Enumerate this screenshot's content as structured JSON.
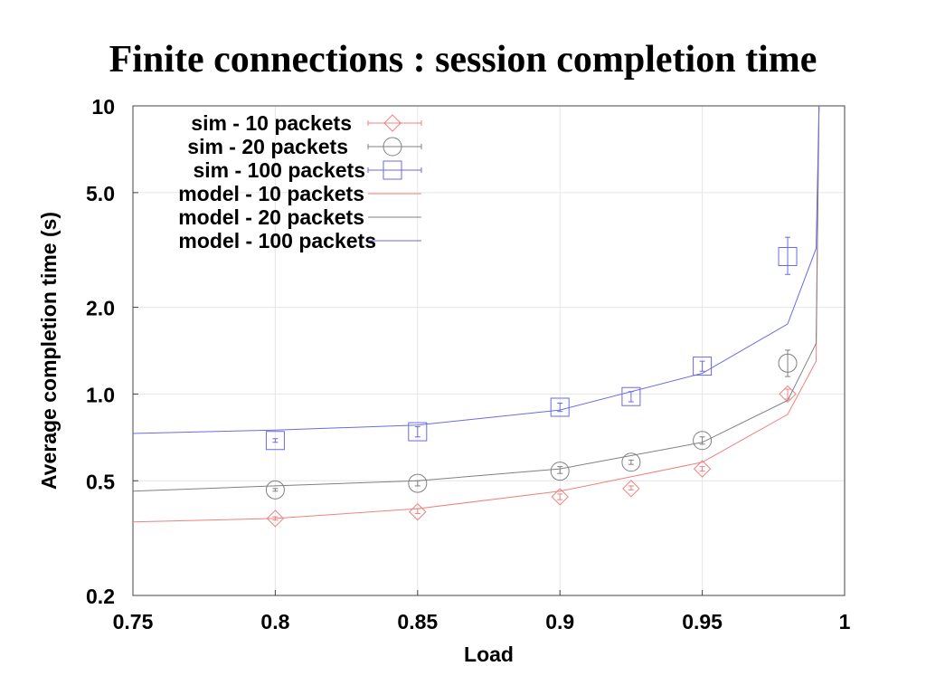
{
  "chart_data": {
    "type": "line",
    "title": "Finite connections : session completion time",
    "xlabel": "Load",
    "ylabel": "Average completion time (s)",
    "xlim": [
      0.75,
      1.0
    ],
    "ylim": [
      0.2,
      10
    ],
    "yscale": "log",
    "grid": true,
    "legend_position": "top-left",
    "xticks": [
      0.75,
      0.8,
      0.85,
      0.9,
      0.95,
      1.0
    ],
    "xtick_labels": [
      "0.75",
      "0.8",
      "0.85",
      "0.9",
      "0.95",
      "1"
    ],
    "yticks": [
      0.2,
      0.5,
      1.0,
      2.0,
      5.0,
      10
    ],
    "ytick_labels": [
      "0.2",
      "0.5",
      "1.0",
      "2.0",
      "5.0",
      "10"
    ],
    "series": [
      {
        "name": "sim - 10 packets",
        "kind": "points",
        "marker": "diamond",
        "color": "#f08080",
        "points": [
          {
            "x": 0.8,
            "y": 0.37,
            "lo": 0.365,
            "hi": 0.375
          },
          {
            "x": 0.85,
            "y": 0.39,
            "lo": 0.385,
            "hi": 0.4
          },
          {
            "x": 0.9,
            "y": 0.44,
            "lo": 0.43,
            "hi": 0.45
          },
          {
            "x": 0.925,
            "y": 0.47,
            "lo": 0.465,
            "hi": 0.48
          },
          {
            "x": 0.95,
            "y": 0.55,
            "lo": 0.54,
            "hi": 0.56
          },
          {
            "x": 0.98,
            "y": 1.0,
            "lo": 0.96,
            "hi": 1.04
          }
        ]
      },
      {
        "name": "sim - 20 packets",
        "kind": "points",
        "marker": "circle",
        "color": "#808080",
        "points": [
          {
            "x": 0.8,
            "y": 0.465,
            "lo": 0.46,
            "hi": 0.47
          },
          {
            "x": 0.85,
            "y": 0.49,
            "lo": 0.48,
            "hi": 0.5
          },
          {
            "x": 0.9,
            "y": 0.54,
            "lo": 0.53,
            "hi": 0.56
          },
          {
            "x": 0.925,
            "y": 0.58,
            "lo": 0.57,
            "hi": 0.59
          },
          {
            "x": 0.95,
            "y": 0.69,
            "lo": 0.67,
            "hi": 0.71
          },
          {
            "x": 0.98,
            "y": 1.28,
            "lo": 1.15,
            "hi": 1.42
          }
        ]
      },
      {
        "name": "sim - 100 packets",
        "kind": "points",
        "marker": "square",
        "color": "#6a6ae8",
        "points": [
          {
            "x": 0.8,
            "y": 0.69,
            "lo": 0.68,
            "hi": 0.7
          },
          {
            "x": 0.85,
            "y": 0.74,
            "lo": 0.71,
            "hi": 0.77
          },
          {
            "x": 0.9,
            "y": 0.9,
            "lo": 0.87,
            "hi": 0.93
          },
          {
            "x": 0.925,
            "y": 0.98,
            "lo": 0.94,
            "hi": 1.02
          },
          {
            "x": 0.95,
            "y": 1.25,
            "lo": 1.2,
            "hi": 1.3
          },
          {
            "x": 0.98,
            "y": 3.0,
            "lo": 2.6,
            "hi": 3.5
          }
        ]
      },
      {
        "name": "model - 10 packets",
        "kind": "line",
        "color": "#f08080",
        "points": [
          {
            "x": 0.75,
            "y": 0.36
          },
          {
            "x": 0.8,
            "y": 0.37
          },
          {
            "x": 0.85,
            "y": 0.4
          },
          {
            "x": 0.9,
            "y": 0.46
          },
          {
            "x": 0.95,
            "y": 0.58
          },
          {
            "x": 0.98,
            "y": 0.85
          },
          {
            "x": 0.99,
            "y": 1.3
          },
          {
            "x": 0.991,
            "y": 10
          }
        ]
      },
      {
        "name": "model - 20 packets",
        "kind": "line",
        "color": "#808080",
        "points": [
          {
            "x": 0.75,
            "y": 0.46
          },
          {
            "x": 0.8,
            "y": 0.48
          },
          {
            "x": 0.85,
            "y": 0.5
          },
          {
            "x": 0.9,
            "y": 0.55
          },
          {
            "x": 0.95,
            "y": 0.68
          },
          {
            "x": 0.98,
            "y": 0.95
          },
          {
            "x": 0.99,
            "y": 1.5
          },
          {
            "x": 0.991,
            "y": 10
          }
        ]
      },
      {
        "name": "model - 100 packets",
        "kind": "line",
        "color": "#6a6ae8",
        "points": [
          {
            "x": 0.75,
            "y": 0.73
          },
          {
            "x": 0.8,
            "y": 0.75
          },
          {
            "x": 0.85,
            "y": 0.78
          },
          {
            "x": 0.9,
            "y": 0.88
          },
          {
            "x": 0.95,
            "y": 1.18
          },
          {
            "x": 0.98,
            "y": 1.75
          },
          {
            "x": 0.99,
            "y": 3.2
          },
          {
            "x": 0.991,
            "y": 10
          }
        ]
      }
    ]
  }
}
